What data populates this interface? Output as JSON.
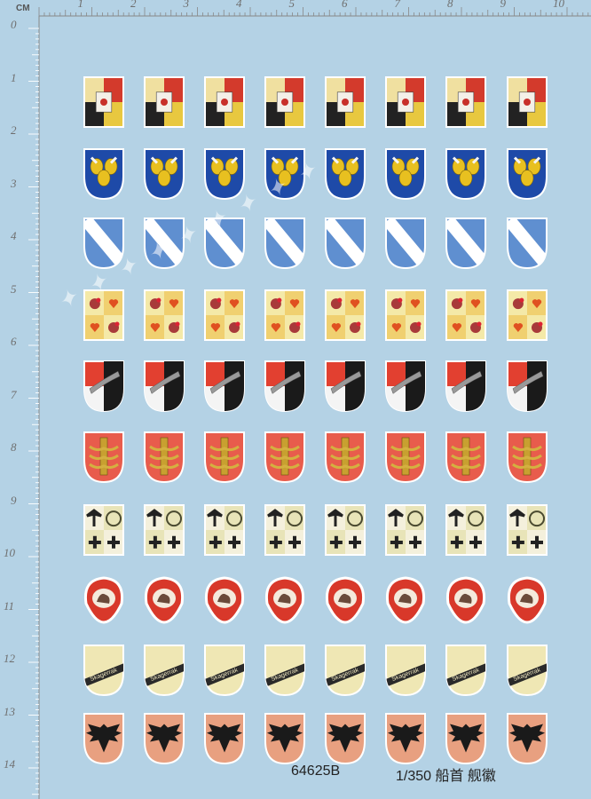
{
  "ruler": {
    "unit": "CM",
    "top_numbers": [
      "1",
      "2",
      "3",
      "4",
      "5",
      "6",
      "7",
      "8",
      "9",
      "10"
    ],
    "left_numbers": [
      "0",
      "1",
      "2",
      "3",
      "4",
      "5",
      "6",
      "7",
      "8",
      "9",
      "10",
      "11",
      "12",
      "13",
      "14"
    ]
  },
  "footer": {
    "catalog_number": "64625B",
    "scale_and_title": "1/350 船首 舰徽"
  },
  "decal_rows": [
    {
      "name": "quartered-red-yellow-lion",
      "count": 8
    },
    {
      "name": "blue-yellow-oak-leaves",
      "count": 8
    },
    {
      "name": "blue-white-bend",
      "count": 8
    },
    {
      "name": "quartered-roosters-hearts",
      "count": 8
    },
    {
      "name": "red-black-white-halves",
      "count": 8
    },
    {
      "name": "red-gold-column",
      "count": 8
    },
    {
      "name": "quartered-eagle-iron-cross",
      "count": 8
    },
    {
      "name": "red-lion-oval",
      "count": 8
    },
    {
      "name": "skagerrak-band",
      "count": 8,
      "label": "Skagerrak"
    },
    {
      "name": "copper-eagle",
      "count": 8
    }
  ],
  "colors": {
    "sheet": "#b4d2e5",
    "ruler_text": "#6f6f6f"
  }
}
